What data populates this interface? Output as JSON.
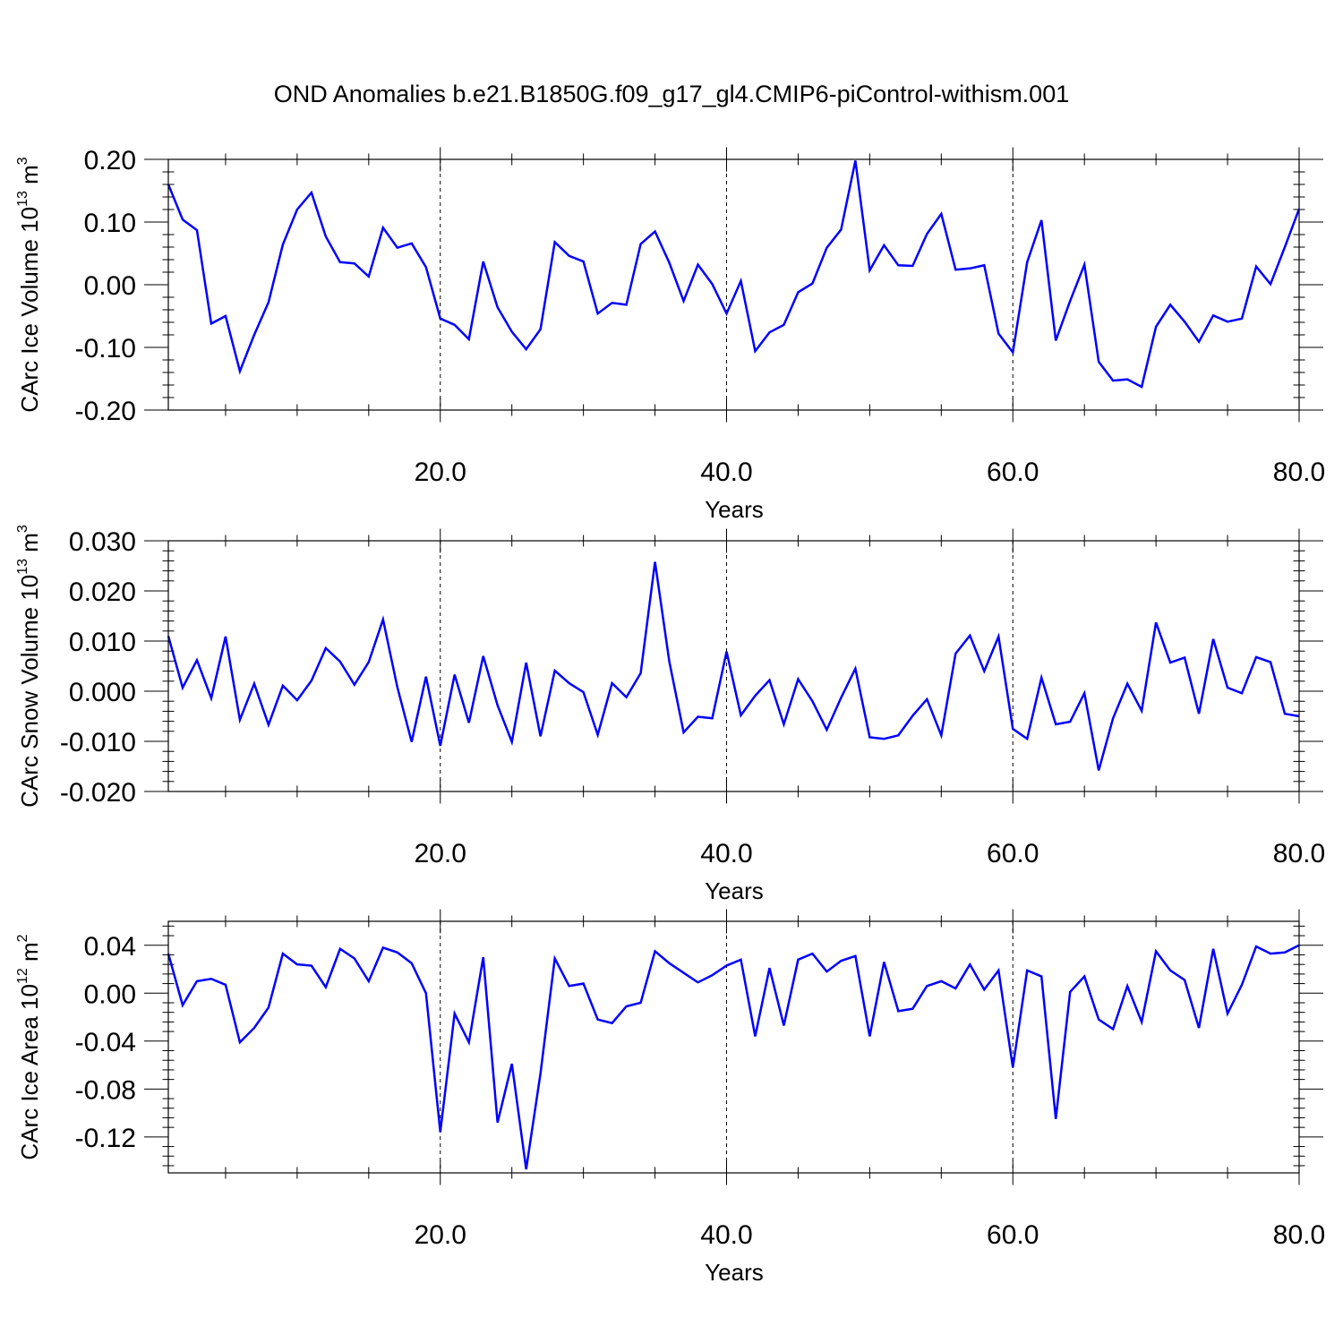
{
  "title": "OND Anomalies b.e21.B1850G.f09_g17_gl4.CMIP6-piControl-withism.001",
  "colors": {
    "line": "#0000ff",
    "axis": "#000000",
    "grid": "#000000",
    "background": "#ffffff"
  },
  "chart_data": [
    {
      "type": "line",
      "ylabel": {
        "base": "CArc Ice Volume 10",
        "sup1": "13",
        "mid": " m",
        "sup2": "3"
      },
      "xlabel": "Years",
      "xlim": [
        1,
        80
      ],
      "ylim": [
        -0.2,
        0.2
      ],
      "xticks": [
        20,
        40,
        60,
        80
      ],
      "xtick_labels": [
        "20.0",
        "40.0",
        "60.0",
        "80.0"
      ],
      "yticks": [
        -0.2,
        -0.1,
        0.0,
        0.1,
        0.2
      ],
      "ytick_labels": [
        "-0.20",
        "-0.10",
        "0.00",
        "0.10",
        "0.20"
      ],
      "grid": "dashed vertical at major x ticks",
      "x": [
        1,
        2,
        3,
        4,
        5,
        6,
        7,
        8,
        9,
        10,
        11,
        12,
        13,
        14,
        15,
        16,
        17,
        18,
        19,
        20,
        21,
        22,
        23,
        24,
        25,
        26,
        27,
        28,
        29,
        30,
        31,
        32,
        33,
        34,
        35,
        36,
        37,
        38,
        39,
        40,
        41,
        42,
        43,
        44,
        45,
        46,
        47,
        48,
        49,
        50,
        51,
        52,
        53,
        54,
        55,
        56,
        57,
        58,
        59,
        60,
        61,
        62,
        63,
        64,
        65,
        66,
        67,
        68,
        69,
        70,
        71,
        72,
        73,
        74,
        75,
        76,
        77,
        78,
        79,
        80
      ],
      "values": [
        0.16,
        0.104,
        0.087,
        -0.062,
        -0.05,
        -0.138,
        -0.08,
        -0.028,
        0.064,
        0.12,
        0.147,
        0.077,
        0.036,
        0.034,
        0.013,
        0.091,
        0.059,
        0.066,
        0.028,
        -0.054,
        -0.064,
        -0.087,
        0.037,
        -0.036,
        -0.075,
        -0.103,
        -0.071,
        0.068,
        0.046,
        0.037,
        -0.046,
        -0.029,
        -0.032,
        0.065,
        0.085,
        0.035,
        -0.026,
        0.032,
        0.001,
        -0.046,
        0.006,
        -0.106,
        -0.076,
        -0.064,
        -0.012,
        0.002,
        0.059,
        0.088,
        0.198,
        0.023,
        0.063,
        0.031,
        0.03,
        0.081,
        0.113,
        0.024,
        0.026,
        0.031,
        -0.078,
        -0.108,
        0.036,
        0.103,
        -0.089,
        -0.026,
        0.032,
        -0.123,
        -0.153,
        -0.151,
        -0.163,
        -0.067,
        -0.032,
        -0.059,
        -0.091,
        -0.049,
        -0.059,
        -0.054,
        0.029,
        0.001,
        0.06,
        0.121
      ]
    },
    {
      "type": "line",
      "ylabel": {
        "base": "CArc Snow Volume 10",
        "sup1": "13",
        "mid": " m",
        "sup2": "3"
      },
      "xlabel": "Years",
      "xlim": [
        1,
        80
      ],
      "ylim": [
        -0.02,
        0.03
      ],
      "xticks": [
        20,
        40,
        60,
        80
      ],
      "xtick_labels": [
        "20.0",
        "40.0",
        "60.0",
        "80.0"
      ],
      "yticks": [
        -0.02,
        -0.01,
        0.0,
        0.01,
        0.02,
        0.03
      ],
      "ytick_labels": [
        "-0.020",
        "-0.010",
        "0.000",
        "0.010",
        "0.020",
        "0.030"
      ],
      "grid": "dashed vertical at major x ticks",
      "x": [
        1,
        2,
        3,
        4,
        5,
        6,
        7,
        8,
        9,
        10,
        11,
        12,
        13,
        14,
        15,
        16,
        17,
        18,
        19,
        20,
        21,
        22,
        23,
        24,
        25,
        26,
        27,
        28,
        29,
        30,
        31,
        32,
        33,
        34,
        35,
        36,
        37,
        38,
        39,
        40,
        41,
        42,
        43,
        44,
        45,
        46,
        47,
        48,
        49,
        50,
        51,
        52,
        53,
        54,
        55,
        56,
        57,
        58,
        59,
        60,
        61,
        62,
        63,
        64,
        65,
        66,
        67,
        68,
        69,
        70,
        71,
        72,
        73,
        74,
        75,
        76,
        77,
        78,
        79,
        80
      ],
      "values": [
        0.011,
        0.0007,
        0.0062,
        -0.0014,
        0.0109,
        -0.0057,
        0.0015,
        -0.0067,
        0.0011,
        -0.0018,
        0.0021,
        0.0086,
        0.0059,
        0.0013,
        0.0058,
        0.0143,
        0.0008,
        -0.0101,
        0.0029,
        -0.0109,
        0.0033,
        -0.0063,
        0.007,
        -0.0028,
        -0.0101,
        0.0057,
        -0.009,
        0.0041,
        0.0016,
        -0.0002,
        -0.0087,
        0.0016,
        -0.0012,
        0.0036,
        0.0258,
        0.0059,
        -0.0082,
        -0.0051,
        -0.0054,
        0.0079,
        -0.0048,
        -0.0009,
        0.0022,
        -0.0066,
        0.0024,
        -0.002,
        -0.0077,
        -0.0013,
        0.0045,
        -0.0092,
        -0.0095,
        -0.0088,
        -0.0049,
        -0.0016,
        -0.0088,
        0.0075,
        0.0111,
        0.004,
        0.0109,
        -0.0075,
        -0.0095,
        0.0027,
        -0.0066,
        -0.0061,
        -0.0004,
        -0.0158,
        -0.0054,
        0.0015,
        -0.0039,
        0.0137,
        0.0057,
        0.0067,
        -0.0045,
        0.0104,
        0.0007,
        -0.0004,
        0.0068,
        0.0058,
        -0.0045,
        -0.005
      ]
    },
    {
      "type": "line",
      "ylabel": {
        "base": "CArc Ice Area 10",
        "sup1": "12",
        "mid": " m",
        "sup2": "2"
      },
      "xlabel": "Years",
      "xlim": [
        1,
        80
      ],
      "ylim": [
        -0.15,
        0.06
      ],
      "xticks": [
        20,
        40,
        60,
        80
      ],
      "xtick_labels": [
        "20.0",
        "40.0",
        "60.0",
        "80.0"
      ],
      "yticks": [
        -0.12,
        -0.08,
        -0.04,
        0.0,
        0.04
      ],
      "ytick_labels": [
        "-0.12",
        "-0.08",
        "-0.04",
        "0.00",
        "0.04"
      ],
      "grid": "dashed vertical at major x ticks",
      "x": [
        1,
        2,
        3,
        4,
        5,
        6,
        7,
        8,
        9,
        10,
        11,
        12,
        13,
        14,
        15,
        16,
        17,
        18,
        19,
        20,
        21,
        22,
        23,
        24,
        25,
        26,
        27,
        28,
        29,
        30,
        31,
        32,
        33,
        34,
        35,
        36,
        37,
        38,
        39,
        40,
        41,
        42,
        43,
        44,
        45,
        46,
        47,
        48,
        49,
        50,
        51,
        52,
        53,
        54,
        55,
        56,
        57,
        58,
        59,
        60,
        61,
        62,
        63,
        64,
        65,
        66,
        67,
        68,
        69,
        70,
        71,
        72,
        73,
        74,
        75,
        76,
        77,
        78,
        79,
        80
      ],
      "values": [
        0.033,
        -0.01,
        0.01,
        0.012,
        0.007,
        -0.041,
        -0.029,
        -0.012,
        0.033,
        0.024,
        0.023,
        0.005,
        0.037,
        0.029,
        0.01,
        0.038,
        0.034,
        0.025,
        0.0,
        -0.116,
        -0.017,
        -0.041,
        0.03,
        -0.108,
        -0.059,
        -0.147,
        -0.067,
        0.029,
        0.006,
        0.008,
        -0.022,
        -0.025,
        -0.011,
        -0.008,
        0.035,
        0.025,
        0.017,
        0.009,
        0.015,
        0.023,
        0.028,
        -0.036,
        0.021,
        -0.027,
        0.028,
        0.033,
        0.018,
        0.027,
        0.031,
        -0.036,
        0.026,
        -0.015,
        -0.013,
        0.006,
        0.01,
        0.004,
        0.024,
        0.003,
        0.019,
        -0.062,
        0.019,
        0.014,
        -0.105,
        0.001,
        0.014,
        -0.022,
        -0.03,
        0.006,
        -0.024,
        0.035,
        0.019,
        0.011,
        -0.029,
        0.037,
        -0.017,
        0.007,
        0.039,
        0.033,
        0.034,
        0.04
      ]
    }
  ]
}
